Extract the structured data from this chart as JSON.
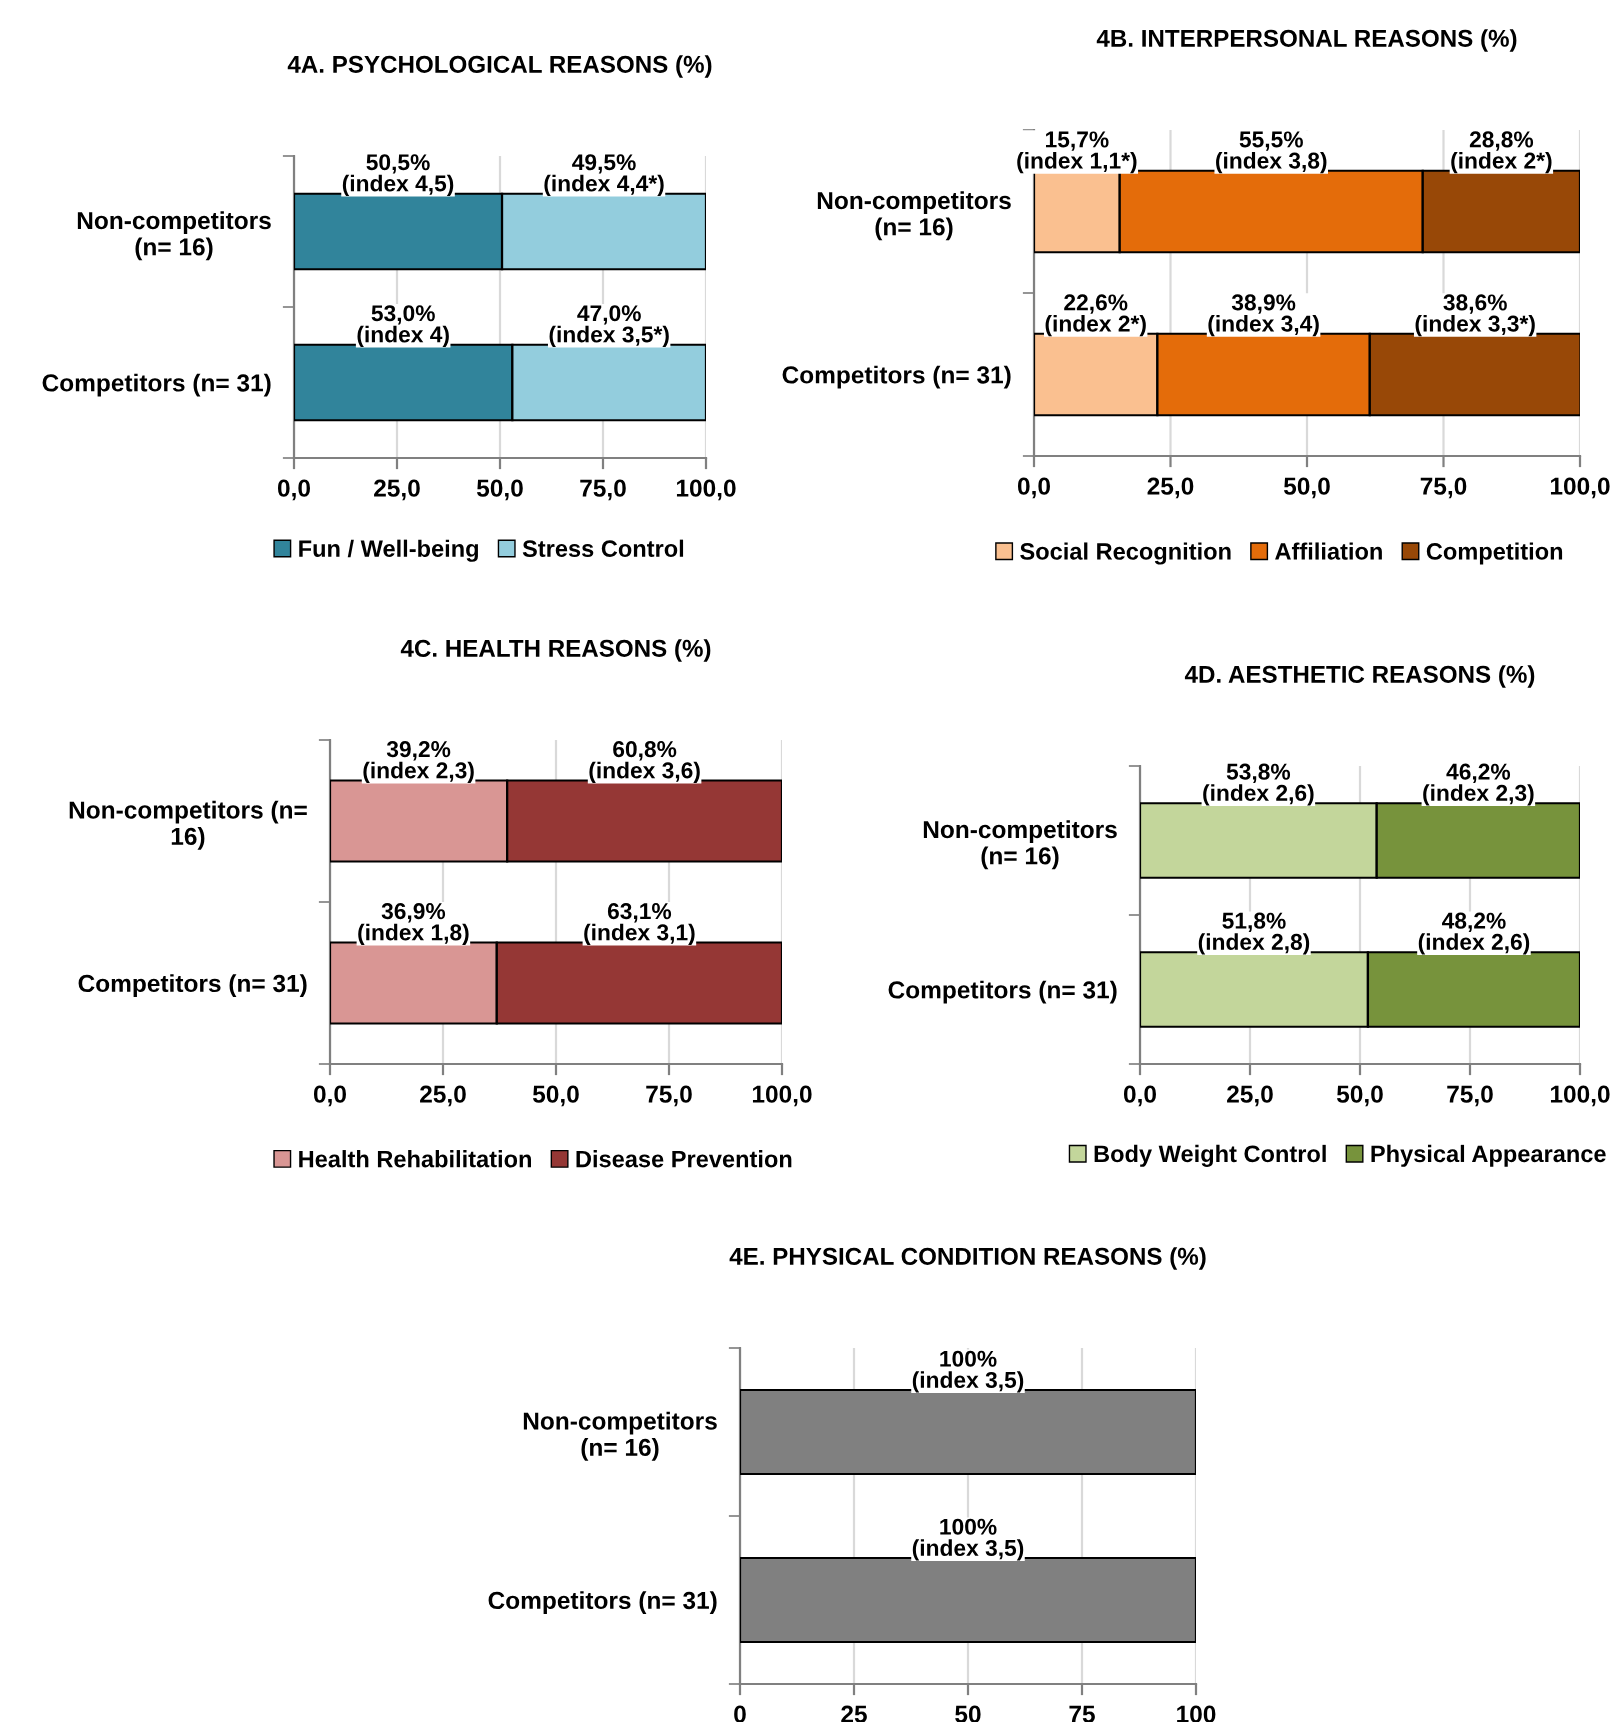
{
  "chart_data": [
    {
      "type": "bar",
      "orientation": "horizontal",
      "stacked": true,
      "title": "4A. PSYCHOLOGICAL REASONS (%)",
      "categories": [
        "Non-competitors\n(n= 16)",
        "Competitors (n= 31)"
      ],
      "xlim": [
        0,
        100
      ],
      "xticks": [
        {
          "value": 0,
          "label": "0,0"
        },
        {
          "value": 25,
          "label": "25,0"
        },
        {
          "value": 50,
          "label": "50,0"
        },
        {
          "value": 75,
          "label": "75,0"
        },
        {
          "value": 100,
          "label": "100,0"
        }
      ],
      "grid": "x",
      "legend": "bottom",
      "series": [
        {
          "name": "Fun / Well-being",
          "color": "#31849b",
          "values": [
            50.5,
            53.0
          ],
          "value_labels": [
            "50,5%\n(index 4,5)",
            "53,0%\n(index 4)"
          ]
        },
        {
          "name": "Stress Control",
          "color": "#93cddd",
          "values": [
            49.5,
            47.0
          ],
          "value_labels": [
            "49,5%\n(index 4,4*)",
            "47,0%\n(index 3,5*)"
          ]
        }
      ]
    },
    {
      "type": "bar",
      "orientation": "horizontal",
      "stacked": true,
      "title": "4B. INTERPERSONAL REASONS (%)",
      "categories": [
        "Non-competitors\n(n= 16)",
        "Competitors (n= 31)"
      ],
      "xlim": [
        0,
        100
      ],
      "xticks": [
        {
          "value": 0,
          "label": "0,0"
        },
        {
          "value": 25,
          "label": "25,0"
        },
        {
          "value": 50,
          "label": "50,0"
        },
        {
          "value": 75,
          "label": "75,0"
        },
        {
          "value": 100,
          "label": "100,0"
        }
      ],
      "grid": "x",
      "legend": "bottom",
      "series": [
        {
          "name": "Social Recognition",
          "color": "#fac090",
          "values": [
            15.7,
            22.6
          ],
          "value_labels": [
            "15,7%\n(index 1,1*)",
            "22,6%\n(index 2*)"
          ]
        },
        {
          "name": "Affiliation",
          "color": "#e46c0a",
          "values": [
            55.5,
            38.9
          ],
          "value_labels": [
            "55,5%\n(index 3,8)",
            "38,9%\n(index 3,4)"
          ]
        },
        {
          "name": "Competition",
          "color": "#984807",
          "values": [
            28.8,
            38.6
          ],
          "value_labels": [
            "28,8%\n(index 2*)",
            "38,6%\n(index 3,3*)"
          ]
        }
      ]
    },
    {
      "type": "bar",
      "orientation": "horizontal",
      "stacked": true,
      "title": "4C. HEALTH REASONS (%)",
      "categories": [
        "Non-competitors (n=\n16)",
        "Competitors (n= 31)"
      ],
      "xlim": [
        0,
        100
      ],
      "xticks": [
        {
          "value": 0,
          "label": "0,0"
        },
        {
          "value": 25,
          "label": "25,0"
        },
        {
          "value": 50,
          "label": "50,0"
        },
        {
          "value": 75,
          "label": "75,0"
        },
        {
          "value": 100,
          "label": "100,0"
        }
      ],
      "grid": "x",
      "legend": "bottom",
      "series": [
        {
          "name": "Health Rehabilitation",
          "color": "#d99694",
          "values": [
            39.2,
            36.9
          ],
          "value_labels": [
            "39,2%\n(index 2,3)",
            "36,9%\n(index 1,8)"
          ]
        },
        {
          "name": "Disease Prevention",
          "color": "#953735",
          "values": [
            60.8,
            63.1
          ],
          "value_labels": [
            "60,8%\n(index 3,6)",
            "63,1%\n(index 3,1)"
          ]
        }
      ]
    },
    {
      "type": "bar",
      "orientation": "horizontal",
      "stacked": true,
      "title": "4D. AESTHETIC REASONS (%)",
      "categories": [
        "Non-competitors\n(n= 16)",
        "Competitors (n= 31)"
      ],
      "xlim": [
        0,
        100
      ],
      "xticks": [
        {
          "value": 0,
          "label": "0,0"
        },
        {
          "value": 25,
          "label": "25,0"
        },
        {
          "value": 50,
          "label": "50,0"
        },
        {
          "value": 75,
          "label": "75,0"
        },
        {
          "value": 100,
          "label": "100,0"
        }
      ],
      "grid": "x",
      "legend": "bottom",
      "series": [
        {
          "name": "Body Weight Control",
          "color": "#c3d69b",
          "values": [
            53.8,
            51.8
          ],
          "value_labels": [
            "53,8%\n(index 2,6)",
            "51,8%\n(index 2,8)"
          ]
        },
        {
          "name": "Physical Appearance",
          "color": "#77933c",
          "values": [
            46.2,
            48.2
          ],
          "value_labels": [
            "46,2%\n(index 2,3)",
            "48,2%\n(index 2,6)"
          ]
        }
      ]
    },
    {
      "type": "bar",
      "orientation": "horizontal",
      "stacked": true,
      "title": "4E. PHYSICAL CONDITION REASONS (%)",
      "categories": [
        "Non-competitors\n(n= 16)",
        "Competitors (n= 31)"
      ],
      "xlim": [
        0,
        100
      ],
      "xticks": [
        0,
        25,
        50,
        75,
        100
      ],
      "grid": "x",
      "series": [
        {
          "color": "#808080",
          "values": [
            100,
            100
          ],
          "value_labels": [
            "100%\n(index 3,5)",
            "100%\n(index 3,5)"
          ]
        }
      ]
    }
  ]
}
